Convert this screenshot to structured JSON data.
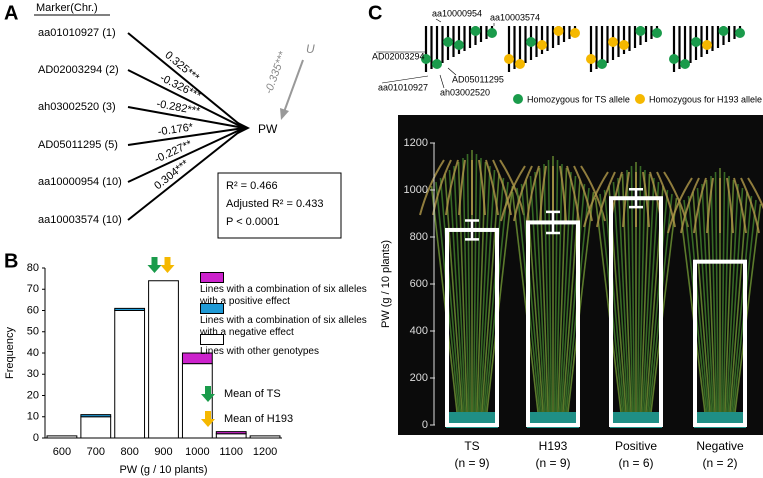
{
  "panel_labels": [
    "A",
    "B",
    "C"
  ],
  "path_diagram": {
    "header": "Marker(Chr.)",
    "markers": [
      {
        "label": "aa01010927 (1)",
        "coefficient": "0.325***"
      },
      {
        "label": "AD02003294 (2)",
        "coefficient": "-0.326***"
      },
      {
        "label": "ah03002520 (3)",
        "coefficient": "-0.282***"
      },
      {
        "label": "AD05011295 (5)",
        "coefficient": "-0.176*"
      },
      {
        "label": "aa10000954 (10)",
        "coefficient": "-0.227**"
      },
      {
        "label": "aa10003574 (10)",
        "coefficient": "0.304***"
      }
    ],
    "response": "PW",
    "residual": {
      "label": "U",
      "coefficient": "-0.335***"
    },
    "stats": [
      "R² = 0.466",
      "Adjusted R² = 0.433",
      "P < 0.0001"
    ]
  },
  "genotype_diagram": {
    "markers": [
      "aa10000954",
      "aa10003574",
      "AD02003294",
      "AD05011295",
      "aa01010927",
      "ah03002520"
    ],
    "legend": [
      {
        "label": "Homozygous for TS allele",
        "color": "#1a9b4b"
      },
      {
        "label": "Homozygous for H193 allele",
        "color": "#f5b800"
      }
    ]
  },
  "chart_data": [
    {
      "type": "bar",
      "stacked": true,
      "categories": [
        "600",
        "700",
        "800",
        "900",
        "1000",
        "1100",
        "1200"
      ],
      "series": [
        {
          "name": "Lines with a combination of six alleles with a positive effect",
          "color": "#cc22cc",
          "values": [
            0,
            0,
            0,
            0,
            5,
            1,
            0
          ]
        },
        {
          "name": "Lines with a combination of six alleles with a negative effect",
          "color": "#1f9ad6",
          "values": [
            0,
            1,
            1,
            0,
            0,
            0,
            0
          ]
        },
        {
          "name": "Lines with other genotypes",
          "color": "#ffffff",
          "values": [
            1,
            10,
            60,
            74,
            35,
            2,
            1
          ]
        }
      ],
      "xlabel": "PW (g / 10 plants)",
      "ylabel": "Frequency",
      "ylim": [
        0,
        80
      ],
      "yticks": [
        0,
        10,
        20,
        30,
        40,
        50,
        60,
        70,
        80
      ],
      "annotations": [
        {
          "text": "Mean of TS",
          "color": "#1a9b4b"
        },
        {
          "text": "Mean of H193",
          "color": "#f5b800"
        }
      ]
    },
    {
      "type": "bar",
      "categories": [
        "TS",
        "H193",
        "Positive",
        "Negative"
      ],
      "sample_sizes": [
        "(n = 9)",
        "(n = 9)",
        "(n = 6)",
        "(n = 2)"
      ],
      "values": [
        830,
        862,
        965,
        695
      ],
      "errors": [
        40,
        45,
        38,
        null
      ],
      "color": "#ffffff",
      "ylabel": "PW (g / 10 plants)",
      "ylim": [
        0,
        1200
      ],
      "yticks": [
        0,
        200,
        400,
        600,
        800,
        1000,
        1200
      ]
    }
  ]
}
